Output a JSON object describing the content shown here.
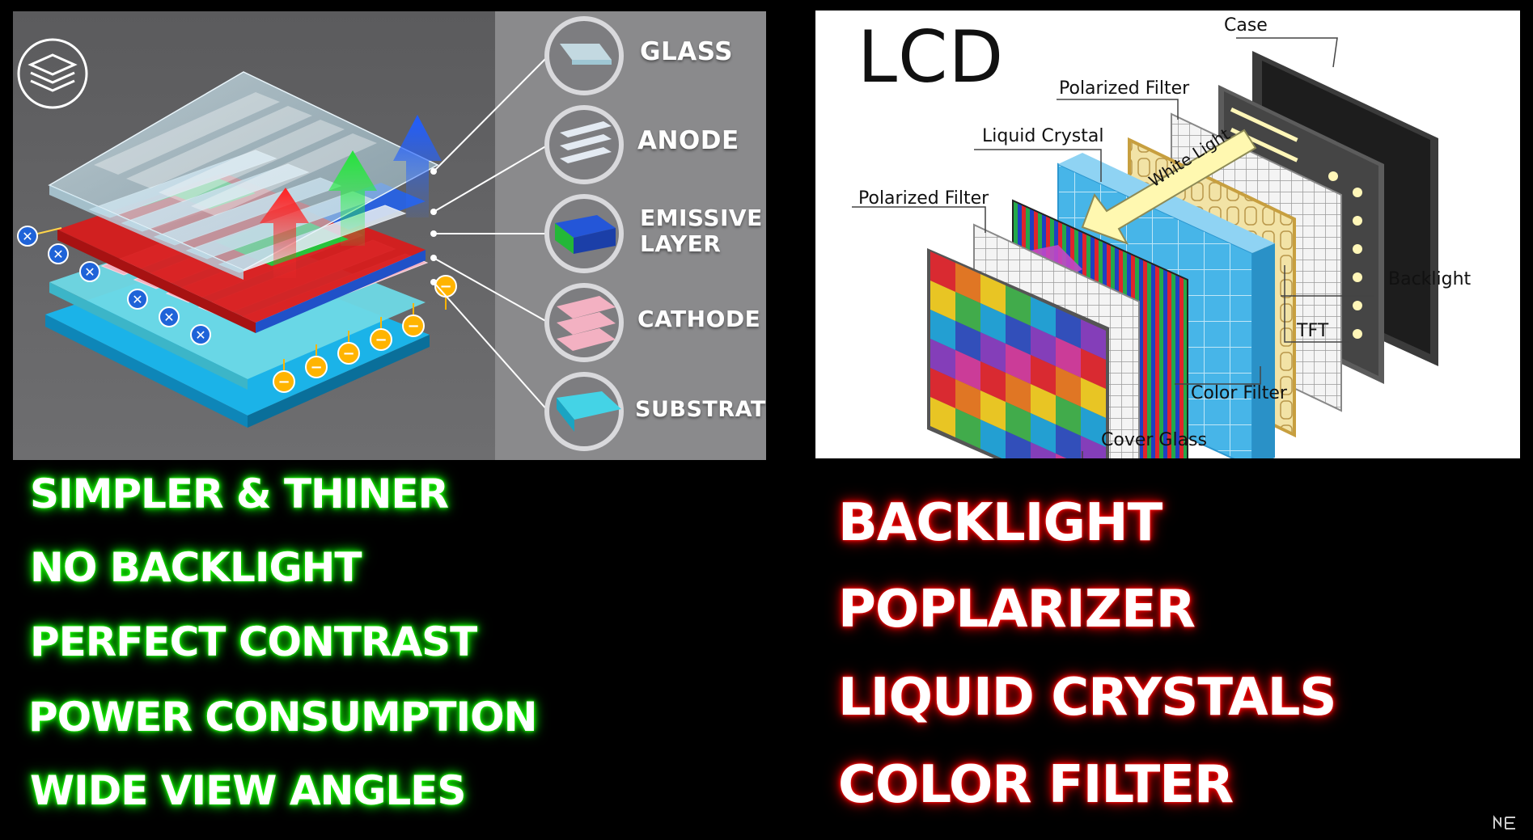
{
  "oled_diagram": {
    "layers": [
      {
        "label_line1": "GLASS",
        "label_line2": ""
      },
      {
        "label_line1": "ANODE",
        "label_line2": ""
      },
      {
        "label_line1": "EMISSIVE",
        "label_line2": "LAYER"
      },
      {
        "label_line1": "CATHODE",
        "label_line2": ""
      },
      {
        "label_line1": "SUBSTRATE",
        "label_line2": ""
      }
    ]
  },
  "lcd_diagram": {
    "title": "LCD",
    "labels": {
      "case": "Case",
      "polarized_filter_top": "Polarized Filter",
      "liquid_crystal": "Liquid Crystal",
      "polarized_filter_left": "Polarized Filter",
      "white_light": "White Light",
      "backlight": "Backlight",
      "tft": "TFT",
      "color_filter": "Color Filter",
      "cover_glass": "Cover Glass"
    }
  },
  "oled_features": [
    "SIMPLER & THINER",
    "NO BACKLIGHT",
    "PERFECT CONTRAST",
    "POWER CONSUMPTION",
    "WIDE VIEW ANGLES"
  ],
  "lcd_features": [
    "BACKLIGHT",
    "POPLARIZER",
    "LIQUID CRYSTALS",
    "COLOR FILTER"
  ],
  "colors": {
    "pro_glow": "#1aff00",
    "con_glow": "#ff0000"
  }
}
